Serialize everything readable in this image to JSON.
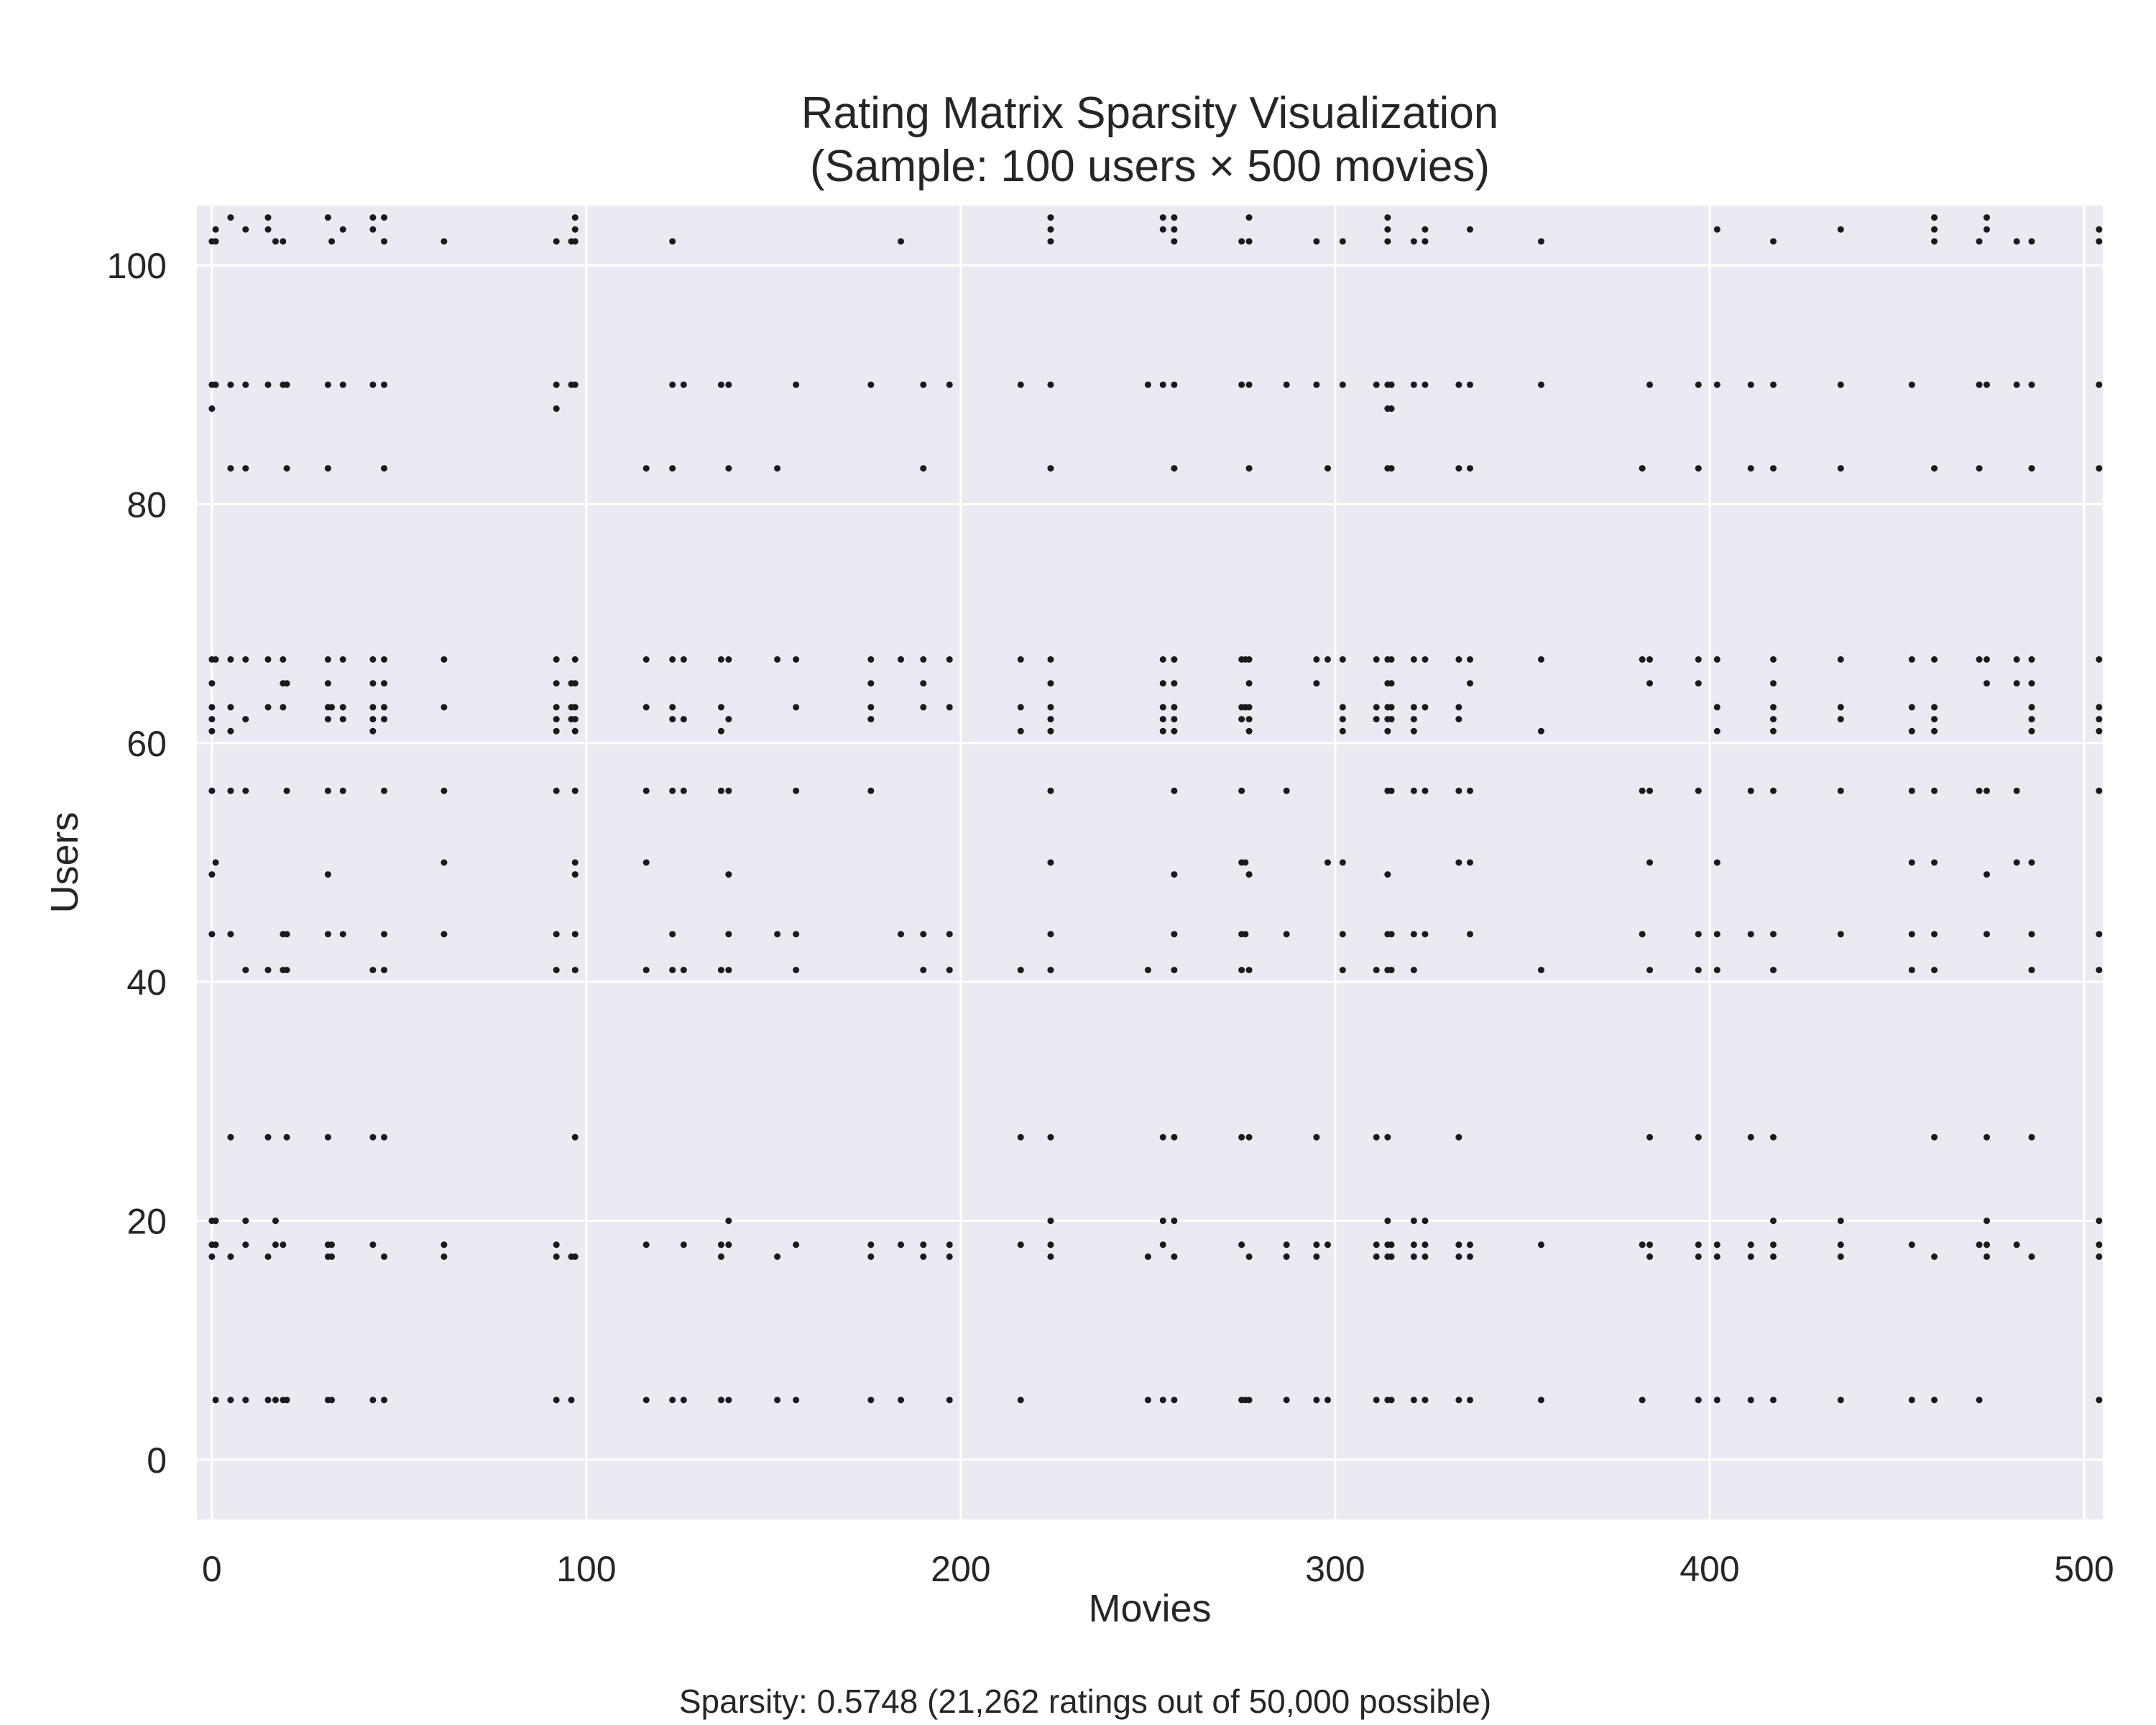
{
  "chart_data": {
    "type": "scatter",
    "title_line1": "Rating Matrix Sparsity Visualization",
    "title_line2": "(Sample: 100 users × 500 movies)",
    "xlabel": "Movies",
    "ylabel": "Users",
    "footnote": "Sparsity: 0.5748 (21,262 ratings out of 50,000 possible)",
    "xlim": [
      -4,
      505
    ],
    "ylim": [
      -5,
      105
    ],
    "xticks": [
      0,
      100,
      200,
      300,
      400,
      500
    ],
    "yticks": [
      0,
      20,
      40,
      60,
      80,
      100
    ],
    "grid": true,
    "colors": {
      "background": "#EAEAF2",
      "grid": "#FFFFFF",
      "marker": "#1A1A1A"
    },
    "user_rows": [
      5,
      17,
      18,
      20,
      27,
      41,
      44,
      49,
      50,
      56,
      61,
      62,
      63,
      65,
      67,
      83,
      88,
      90,
      102,
      103,
      104
    ],
    "movie_columns": [
      0,
      1,
      5,
      9,
      15,
      17,
      19,
      20,
      31,
      32,
      35,
      43,
      46,
      62,
      92,
      96,
      97,
      116,
      123,
      126,
      136,
      138,
      151,
      156,
      176,
      184,
      190,
      197,
      216,
      224,
      250,
      254,
      257,
      275,
      276,
      277,
      287,
      295,
      298,
      302,
      311,
      314,
      315,
      321,
      324,
      333,
      336,
      355,
      382,
      384,
      397,
      402,
      411,
      417,
      435,
      454,
      460,
      472,
      474,
      482,
      486,
      504
    ],
    "points": {
      "row_5": [
        1,
        5,
        9,
        15,
        17,
        19,
        20,
        31,
        32,
        43,
        46,
        92,
        96,
        116,
        123,
        126,
        136,
        138,
        151,
        156,
        176,
        184,
        197,
        216,
        250,
        254,
        257,
        275,
        276,
        277,
        287,
        295,
        298,
        311,
        314,
        315,
        321,
        324,
        333,
        336,
        355,
        382,
        397,
        402,
        411,
        417,
        435,
        454,
        460,
        472,
        504
      ],
      "row_17": [
        0,
        5,
        15,
        31,
        32,
        46,
        62,
        92,
        96,
        97,
        136,
        151,
        176,
        190,
        197,
        224,
        250,
        257,
        277,
        287,
        295,
        311,
        314,
        315,
        321,
        324,
        333,
        336,
        384,
        397,
        402,
        411,
        417,
        435,
        460,
        474,
        486,
        504
      ],
      "row_18": [
        0,
        1,
        9,
        17,
        19,
        31,
        32,
        43,
        62,
        92,
        116,
        126,
        136,
        138,
        156,
        176,
        184,
        190,
        197,
        216,
        224,
        254,
        275,
        287,
        295,
        298,
        311,
        314,
        315,
        321,
        324,
        333,
        336,
        355,
        382,
        384,
        397,
        402,
        411,
        417,
        435,
        454,
        472,
        474,
        482,
        504
      ],
      "row_20": [
        0,
        1,
        9,
        17,
        138,
        224,
        254,
        257,
        314,
        321,
        324,
        417,
        435,
        474,
        504
      ],
      "row_27": [
        5,
        15,
        20,
        31,
        43,
        46,
        97,
        216,
        224,
        254,
        257,
        275,
        277,
        295,
        311,
        314,
        333,
        384,
        397,
        411,
        417,
        460,
        474,
        486
      ],
      "row_41": [
        9,
        15,
        19,
        20,
        43,
        46,
        92,
        97,
        116,
        123,
        126,
        136,
        138,
        156,
        190,
        197,
        216,
        224,
        250,
        257,
        275,
        277,
        302,
        311,
        314,
        315,
        321,
        355,
        384,
        397,
        402,
        417,
        454,
        460,
        486,
        504
      ],
      "row_44": [
        0,
        5,
        19,
        20,
        31,
        35,
        46,
        62,
        92,
        97,
        123,
        138,
        151,
        156,
        184,
        190,
        197,
        224,
        257,
        275,
        276,
        287,
        302,
        314,
        315,
        321,
        324,
        336,
        382,
        397,
        402,
        411,
        417,
        435,
        454,
        460,
        474,
        486,
        504
      ],
      "row_49": [
        0,
        31,
        97,
        138,
        257,
        277,
        314,
        474
      ],
      "row_50": [
        1,
        62,
        97,
        116,
        224,
        275,
        276,
        298,
        302,
        333,
        336,
        384,
        402,
        454,
        460,
        482,
        486
      ],
      "row_56": [
        0,
        5,
        9,
        20,
        31,
        35,
        46,
        62,
        92,
        97,
        116,
        123,
        126,
        136,
        138,
        156,
        176,
        224,
        257,
        275,
        287,
        314,
        315,
        321,
        324,
        333,
        336,
        382,
        384,
        397,
        411,
        417,
        435,
        454,
        460,
        472,
        474,
        482,
        504
      ],
      "row_61": [
        0,
        5,
        43,
        92,
        97,
        136,
        216,
        224,
        254,
        257,
        277,
        302,
        314,
        321,
        355,
        402,
        417,
        454,
        460,
        486,
        504
      ],
      "row_62": [
        0,
        9,
        31,
        35,
        43,
        46,
        92,
        96,
        97,
        123,
        126,
        138,
        176,
        224,
        254,
        257,
        275,
        277,
        302,
        311,
        314,
        315,
        321,
        333,
        417,
        435,
        460,
        486,
        504
      ],
      "row_63": [
        0,
        5,
        15,
        19,
        31,
        32,
        35,
        43,
        46,
        62,
        92,
        96,
        97,
        116,
        123,
        136,
        156,
        176,
        190,
        197,
        216,
        224,
        254,
        257,
        275,
        276,
        277,
        302,
        311,
        314,
        315,
        321,
        324,
        333,
        402,
        417,
        435,
        454,
        460,
        486,
        504
      ],
      "row_65": [
        0,
        19,
        20,
        31,
        43,
        46,
        92,
        96,
        97,
        176,
        190,
        224,
        254,
        257,
        277,
        295,
        314,
        315,
        336,
        384,
        397,
        417,
        474,
        482,
        486
      ],
      "row_67": [
        0,
        1,
        5,
        9,
        15,
        19,
        31,
        35,
        43,
        46,
        62,
        92,
        97,
        116,
        123,
        126,
        136,
        138,
        151,
        156,
        176,
        184,
        190,
        197,
        216,
        224,
        254,
        257,
        275,
        276,
        277,
        295,
        298,
        302,
        311,
        314,
        315,
        321,
        324,
        333,
        336,
        355,
        382,
        384,
        397,
        402,
        417,
        435,
        454,
        460,
        472,
        474,
        482,
        486,
        504
      ],
      "row_83": [
        5,
        9,
        20,
        31,
        46,
        116,
        123,
        138,
        151,
        190,
        224,
        257,
        277,
        298,
        314,
        315,
        333,
        336,
        382,
        397,
        411,
        417,
        435,
        460,
        472,
        486,
        504
      ],
      "row_88": [
        0,
        92,
        314,
        315
      ],
      "row_90": [
        0,
        1,
        5,
        9,
        15,
        19,
        20,
        31,
        35,
        43,
        46,
        92,
        96,
        97,
        123,
        126,
        136,
        138,
        156,
        176,
        190,
        197,
        216,
        224,
        250,
        254,
        257,
        275,
        277,
        287,
        295,
        302,
        311,
        314,
        315,
        321,
        324,
        333,
        336,
        355,
        384,
        397,
        402,
        411,
        417,
        435,
        454,
        472,
        474,
        482,
        486,
        504
      ],
      "row_102": [
        0,
        1,
        17,
        19,
        32,
        46,
        62,
        92,
        96,
        97,
        123,
        184,
        224,
        257,
        275,
        277,
        295,
        302,
        314,
        321,
        324,
        355,
        417,
        460,
        472,
        482,
        486,
        504
      ],
      "row_103": [
        1,
        9,
        15,
        35,
        43,
        97,
        224,
        254,
        257,
        314,
        324,
        336,
        402,
        435,
        460,
        474,
        504
      ],
      "row_104": [
        5,
        15,
        31,
        43,
        46,
        97,
        224,
        254,
        257,
        277,
        314,
        460,
        474
      ]
    }
  }
}
